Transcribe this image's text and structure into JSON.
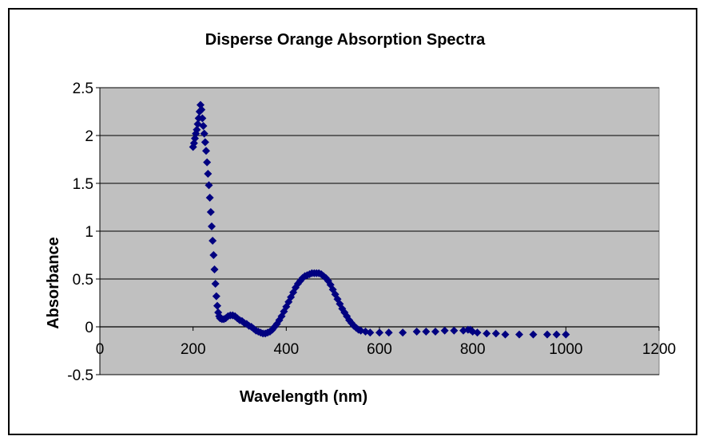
{
  "chart_data": {
    "type": "scatter",
    "title": "Disperse Orange Absorption Spectra",
    "xlabel": "Wavelength (nm)",
    "ylabel": "Absorbance",
    "xlim": [
      0,
      1200
    ],
    "ylim": [
      -0.5,
      2.5
    ],
    "xticks": [
      "0",
      "200",
      "400",
      "600",
      "800",
      "1000",
      "1200"
    ],
    "yticks": [
      "2.5",
      "2",
      "1.5",
      "1",
      "0.5",
      "0",
      "-0.5"
    ],
    "grid": true,
    "legend": "none",
    "marker": "diamond",
    "colors": {
      "plot_bg": "#C0C0C0",
      "marker": "#000080",
      "grid": "#000000"
    },
    "series": [
      {
        "points": [
          [
            200,
            1.88
          ],
          [
            202,
            1.92
          ],
          [
            204,
            1.97
          ],
          [
            206,
            2.02
          ],
          [
            208,
            2.06
          ],
          [
            210,
            2.12
          ],
          [
            212,
            2.18
          ],
          [
            214,
            2.25
          ],
          [
            216,
            2.32
          ],
          [
            218,
            2.27
          ],
          [
            220,
            2.18
          ],
          [
            222,
            2.1
          ],
          [
            224,
            2.02
          ],
          [
            226,
            1.93
          ],
          [
            228,
            1.84
          ],
          [
            230,
            1.72
          ],
          [
            232,
            1.6
          ],
          [
            234,
            1.48
          ],
          [
            236,
            1.35
          ],
          [
            238,
            1.2
          ],
          [
            240,
            1.05
          ],
          [
            242,
            0.9
          ],
          [
            244,
            0.75
          ],
          [
            246,
            0.6
          ],
          [
            248,
            0.45
          ],
          [
            250,
            0.32
          ],
          [
            252,
            0.22
          ],
          [
            254,
            0.15
          ],
          [
            256,
            0.11
          ],
          [
            258,
            0.09
          ],
          [
            262,
            0.08
          ],
          [
            266,
            0.08
          ],
          [
            270,
            0.09
          ],
          [
            275,
            0.11
          ],
          [
            280,
            0.12
          ],
          [
            285,
            0.12
          ],
          [
            290,
            0.11
          ],
          [
            295,
            0.09
          ],
          [
            300,
            0.07
          ],
          [
            305,
            0.06
          ],
          [
            310,
            0.04
          ],
          [
            315,
            0.03
          ],
          [
            320,
            0.01
          ],
          [
            325,
            0.0
          ],
          [
            330,
            -0.02
          ],
          [
            335,
            -0.04
          ],
          [
            340,
            -0.05
          ],
          [
            345,
            -0.06
          ],
          [
            350,
            -0.07
          ],
          [
            355,
            -0.07
          ],
          [
            360,
            -0.06
          ],
          [
            365,
            -0.05
          ],
          [
            370,
            -0.03
          ],
          [
            375,
            0.0
          ],
          [
            380,
            0.03
          ],
          [
            385,
            0.07
          ],
          [
            390,
            0.11
          ],
          [
            395,
            0.16
          ],
          [
            400,
            0.21
          ],
          [
            405,
            0.26
          ],
          [
            410,
            0.31
          ],
          [
            415,
            0.36
          ],
          [
            420,
            0.41
          ],
          [
            425,
            0.45
          ],
          [
            430,
            0.48
          ],
          [
            435,
            0.51
          ],
          [
            440,
            0.53
          ],
          [
            445,
            0.54
          ],
          [
            450,
            0.55
          ],
          [
            455,
            0.56
          ],
          [
            460,
            0.56
          ],
          [
            465,
            0.56
          ],
          [
            470,
            0.56
          ],
          [
            475,
            0.55
          ],
          [
            480,
            0.53
          ],
          [
            485,
            0.51
          ],
          [
            490,
            0.48
          ],
          [
            495,
            0.44
          ],
          [
            500,
            0.39
          ],
          [
            505,
            0.34
          ],
          [
            510,
            0.29
          ],
          [
            515,
            0.24
          ],
          [
            520,
            0.19
          ],
          [
            525,
            0.15
          ],
          [
            530,
            0.11
          ],
          [
            535,
            0.07
          ],
          [
            540,
            0.04
          ],
          [
            545,
            0.01
          ],
          [
            550,
            -0.01
          ],
          [
            555,
            -0.03
          ],
          [
            560,
            -0.04
          ],
          [
            570,
            -0.05
          ],
          [
            580,
            -0.06
          ],
          [
            600,
            -0.06
          ],
          [
            620,
            -0.06
          ],
          [
            650,
            -0.06
          ],
          [
            680,
            -0.05
          ],
          [
            700,
            -0.05
          ],
          [
            720,
            -0.05
          ],
          [
            740,
            -0.04
          ],
          [
            760,
            -0.04
          ],
          [
            780,
            -0.04
          ],
          [
            790,
            -0.03
          ],
          [
            795,
            -0.03
          ],
          [
            800,
            -0.05
          ],
          [
            810,
            -0.06
          ],
          [
            830,
            -0.07
          ],
          [
            850,
            -0.07
          ],
          [
            870,
            -0.08
          ],
          [
            900,
            -0.08
          ],
          [
            930,
            -0.08
          ],
          [
            960,
            -0.08
          ],
          [
            980,
            -0.08
          ],
          [
            1000,
            -0.08
          ]
        ]
      }
    ]
  }
}
